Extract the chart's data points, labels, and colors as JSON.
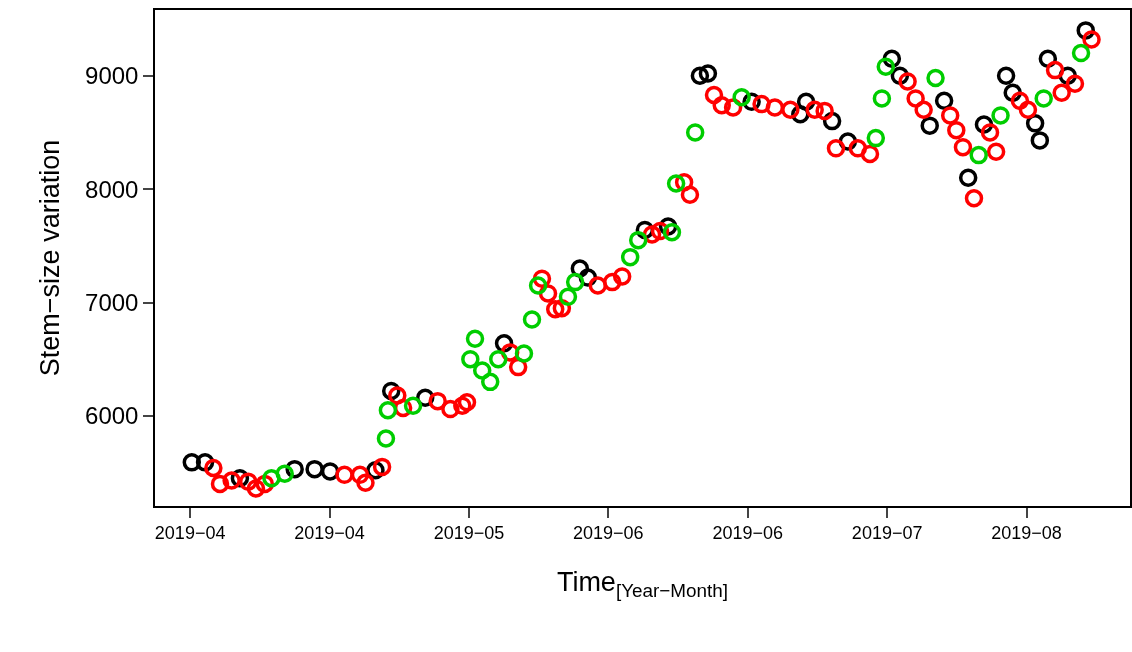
{
  "chart_data": {
    "type": "scatter",
    "xlabel": "Time$_{[Year−Month]}$",
    "ylabel": "Stem−size variation",
    "marker": "circle",
    "grid": false,
    "xlim": [
      "2019-03-26T17:00",
      "2019-08-20T14:00"
    ],
    "ylim": [
      5205,
      9580
    ],
    "yticks": [
      6000,
      7000,
      8000,
      9000
    ],
    "xticks": [
      {
        "value": "2019-04-01",
        "label": "2019−04"
      },
      {
        "value": "2019-04-22",
        "label": "2019−04"
      },
      {
        "value": "2019-05-13",
        "label": "2019−05"
      },
      {
        "value": "2019-06-03",
        "label": "2019−06"
      },
      {
        "value": "2019-06-24",
        "label": "2019−06"
      },
      {
        "value": "2019-07-15",
        "label": "2019−07"
      },
      {
        "value": "2019-08-05",
        "label": "2019−08"
      }
    ],
    "series": [
      {
        "color": "#000000",
        "x": [
          "2019-04-01T06:00",
          "2019-04-03T06:00",
          "2019-04-08T12:00",
          "2019-04-16T18:00",
          "2019-04-19T18:00",
          "2019-04-22T02:00",
          "2019-04-28T22:00",
          "2019-05-01T07:00",
          "2019-05-06T10:00",
          "2019-05-18T07:00",
          "2019-05-29T17:00",
          "2019-05-30T22:00",
          "2019-06-08T12:00",
          "2019-06-12T00:00",
          "2019-06-16T19:00",
          "2019-06-18T00:00",
          "2019-06-24T14:00",
          "2019-07-01T22:00",
          "2019-07-02T19:00",
          "2019-07-06T17:00",
          "2019-07-09T02:00",
          "2019-07-15T17:00",
          "2019-07-16T22:00",
          "2019-07-21T10:00",
          "2019-07-23T14:00",
          "2019-07-27T05:00",
          "2019-07-29T14:00",
          "2019-08-01T22:00",
          "2019-08-02T22:00",
          "2019-08-06T07:00",
          "2019-08-07T00:00",
          "2019-08-08T05:00",
          "2019-08-11T05:00",
          "2019-08-13T22:00"
        ],
        "values": [
          5590,
          5590,
          5450,
          5530,
          5530,
          5510,
          5520,
          6220,
          6160,
          6640,
          7300,
          7220,
          7640,
          7670,
          9000,
          9020,
          8770,
          8660,
          8770,
          8600,
          8420,
          9150,
          9000,
          8560,
          8780,
          8100,
          8570,
          9000,
          8850,
          8580,
          8430,
          9150,
          9000,
          9400
        ]
      },
      {
        "color": "#ff0000",
        "x": [
          "2019-04-04T12:00",
          "2019-04-05T12:00",
          "2019-04-07T06:00",
          "2019-04-09T18:00",
          "2019-04-10T22:00",
          "2019-04-12T06:00",
          "2019-04-24T06:00",
          "2019-04-26T14:00",
          "2019-04-27T10:00",
          "2019-04-29T22:00",
          "2019-05-02T05:00",
          "2019-05-03T02:00",
          "2019-05-08T07:00",
          "2019-05-10T05:00",
          "2019-05-12T00:00",
          "2019-05-12T17:00",
          "2019-05-19T05:00",
          "2019-05-20T10:00",
          "2019-05-24T00:00",
          "2019-05-24T22:00",
          "2019-05-26T00:00",
          "2019-05-27T00:00",
          "2019-06-01T10:00",
          "2019-06-03T14:00",
          "2019-06-05T02:00",
          "2019-06-09T14:00",
          "2019-06-10T19:00",
          "2019-06-14T10:00",
          "2019-06-15T07:00",
          "2019-06-18T22:00",
          "2019-06-20T02:00",
          "2019-06-21T19:00",
          "2019-06-26T02:00",
          "2019-06-28T02:00",
          "2019-06-30T10:00",
          "2019-07-04T02:00",
          "2019-07-05T14:00",
          "2019-07-07T07:00",
          "2019-07-10T14:00",
          "2019-07-12T10:00",
          "2019-07-18T02:00",
          "2019-07-19T07:00",
          "2019-07-20T12:00",
          "2019-07-24T12:00",
          "2019-07-25T10:00",
          "2019-07-26T10:00",
          "2019-07-28T02:00",
          "2019-07-30T12:00",
          "2019-07-31T10:00",
          "2019-08-04T00:00",
          "2019-08-05T05:00",
          "2019-08-09T07:00",
          "2019-08-10T07:00",
          "2019-08-12T07:00",
          "2019-08-14T19:00"
        ],
        "values": [
          5540,
          5400,
          5430,
          5420,
          5360,
          5400,
          5480,
          5480,
          5410,
          5550,
          6180,
          6070,
          6130,
          6060,
          6090,
          6120,
          6560,
          6430,
          7210,
          7080,
          6940,
          6950,
          7150,
          7180,
          7230,
          7600,
          7630,
          8060,
          7950,
          8830,
          8740,
          8720,
          8750,
          8720,
          8700,
          8700,
          8690,
          8360,
          8360,
          8310,
          8950,
          8800,
          8700,
          8650,
          8520,
          8370,
          7920,
          8500,
          8330,
          8780,
          8700,
          9050,
          8850,
          8930,
          9320
        ]
      },
      {
        "color": "#00cd00",
        "x": [
          "2019-04-13T06:00",
          "2019-04-15T06:00",
          "2019-04-30T12:00",
          "2019-04-30T19:00",
          "2019-05-04T14:00",
          "2019-05-13T05:00",
          "2019-05-13T22:00",
          "2019-05-15T00:00",
          "2019-05-16T05:00",
          "2019-05-17T10:00",
          "2019-05-21T07:00",
          "2019-05-22T12:00",
          "2019-05-23T10:00",
          "2019-05-27T22:00",
          "2019-05-29T00:00",
          "2019-06-06T07:00",
          "2019-06-07T12:00",
          "2019-06-12T14:00",
          "2019-06-13T05:00",
          "2019-06-16T02:00",
          "2019-06-23T02:00",
          "2019-07-13T07:00",
          "2019-07-14T05:00",
          "2019-07-14T19:00",
          "2019-07-22T07:00",
          "2019-07-28T19:00",
          "2019-08-01T02:00",
          "2019-08-07T14:00",
          "2019-08-13T05:00"
        ],
        "values": [
          5450,
          5490,
          5800,
          6050,
          6090,
          6500,
          6680,
          6400,
          6300,
          6500,
          6550,
          6850,
          7150,
          7050,
          7180,
          7400,
          7550,
          7620,
          8050,
          8500,
          8810,
          8450,
          8800,
          9080,
          8980,
          8300,
          8650,
          8800,
          9200
        ]
      }
    ]
  }
}
